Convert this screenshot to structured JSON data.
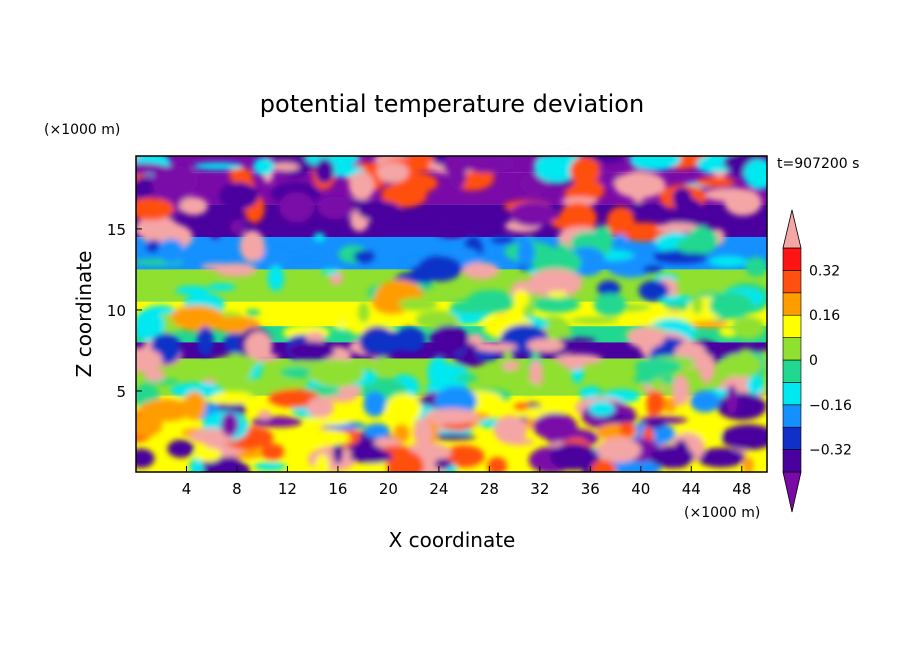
{
  "chart_data": {
    "type": "heatmap",
    "title": "potential temperature deviation",
    "xlabel": "X coordinate",
    "ylabel": "Z coordinate",
    "x_unit": "(×1000 m)",
    "y_unit": "(×1000 m)",
    "time_label": "t=907200 s",
    "xlim": [
      0,
      50
    ],
    "ylim": [
      0,
      19.5
    ],
    "x_ticks": [
      4,
      8,
      12,
      16,
      20,
      24,
      28,
      32,
      36,
      40,
      44,
      48
    ],
    "y_ticks": [
      5,
      10,
      15
    ],
    "colorbar": {
      "levels": [
        -0.4,
        -0.32,
        -0.24,
        -0.16,
        -0.08,
        0,
        0.08,
        0.16,
        0.24,
        0.32,
        0.4
      ],
      "tick_values": [
        0.32,
        0.16,
        0,
        -0.16,
        -0.32
      ],
      "tick_labels": [
        "0.32",
        "0.16",
        "0",
        "−0.16",
        "−0.32"
      ],
      "colors": [
        "#7a0aa8",
        "#4a009e",
        "#1030c8",
        "#1490ff",
        "#00e8f0",
        "#20d890",
        "#90e030",
        "#ffff00",
        "#ff9c00",
        "#ff5010",
        "#ff1414",
        "#f4a6a6"
      ],
      "extend": "both"
    },
    "bands": [
      {
        "z": [
          18.5,
          19.5
        ],
        "value": -0.45
      },
      {
        "z": [
          16.5,
          18.5
        ],
        "value": -0.42
      },
      {
        "z": [
          14.5,
          16.5
        ],
        "value": -0.4
      },
      {
        "z": [
          12.5,
          14.5
        ],
        "value": -0.2
      },
      {
        "z": [
          10.5,
          12.5
        ],
        "value": 0.05
      },
      {
        "z": [
          9.0,
          10.5
        ],
        "value": 0.1
      },
      {
        "z": [
          8.0,
          9.0
        ],
        "value": -0.05
      },
      {
        "z": [
          7.0,
          8.0
        ],
        "value": -0.35
      },
      {
        "z": [
          4.7,
          7.0
        ],
        "value": 0.0
      },
      {
        "z": [
          0,
          4.7
        ],
        "value": 0.1
      }
    ]
  }
}
